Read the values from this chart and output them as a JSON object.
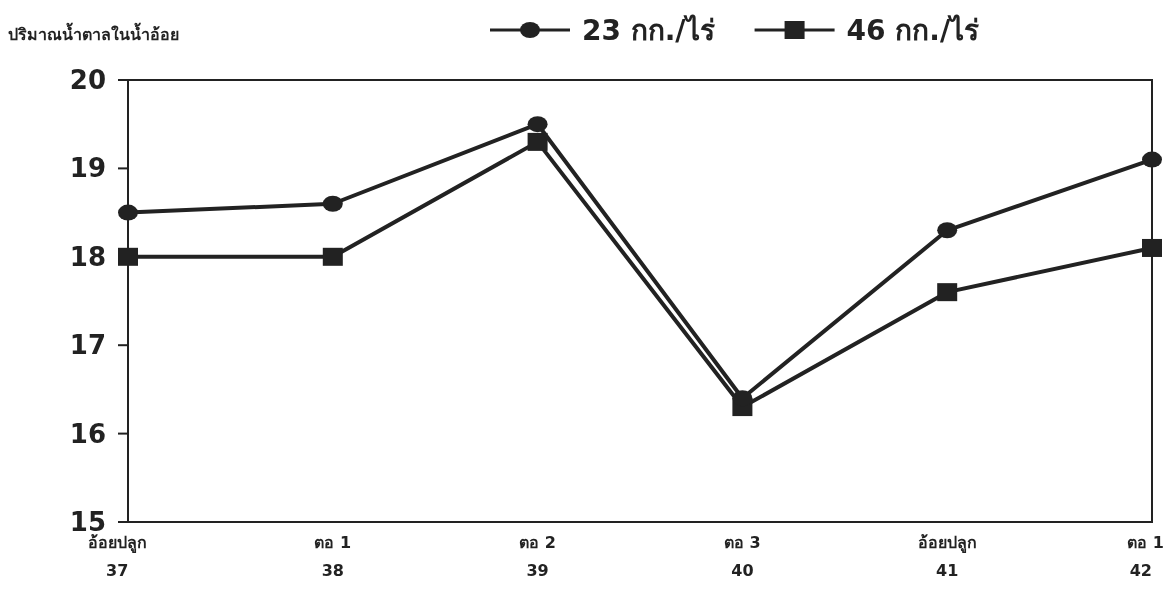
{
  "chart_data": {
    "type": "line",
    "ylabel": "ปริมาณน้ำตาลในน้ำอ้อย",
    "categories": [
      "อ้อยปลูก 37",
      "ตอ 1 38",
      "ตอ 2 39",
      "ตอ 3 40",
      "อ้อยปลูก 41",
      "ตอ 1 42"
    ],
    "series": [
      {
        "name": "23 กก./ไร่",
        "color": "#222222",
        "marker": "circle",
        "values": [
          18.5,
          18.6,
          19.5,
          16.4,
          18.3,
          19.1
        ]
      },
      {
        "name": "46 กก./ไร่",
        "color": "#222222",
        "marker": "square",
        "values": [
          18.0,
          18.0,
          19.3,
          16.3,
          17.6,
          18.1
        ]
      }
    ],
    "ylim": [
      15,
      20
    ],
    "yticks": [
      15,
      16,
      17,
      18,
      19,
      20
    ],
    "legend": "top",
    "grid": false
  }
}
